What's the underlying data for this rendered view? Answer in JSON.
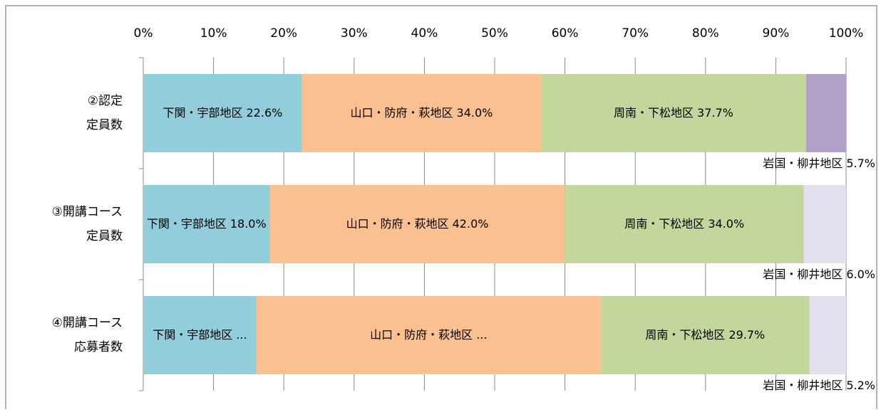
{
  "chart_data": {
    "type": "stacked-bar-100",
    "categories": [
      [
        "②認定",
        "定員数"
      ],
      [
        "③開講コース",
        "定員数"
      ],
      [
        "④開講コース",
        "応募者数"
      ]
    ],
    "series": [
      {
        "name": "下関・宇部地区",
        "color": "#92cddc",
        "values": [
          22.6,
          18.0,
          16.1
        ],
        "value_labels": [
          "22.6%",
          "18.0%",
          "..."
        ]
      },
      {
        "name": "山口・防府・萩地区",
        "color": "#fac090",
        "values": [
          34.0,
          42.0,
          49.0
        ],
        "value_labels": [
          "34.0%",
          "42.0%",
          "..."
        ]
      },
      {
        "name": "周南・下松地区",
        "color": "#c3d69b",
        "values": [
          37.7,
          34.0,
          29.7
        ],
        "value_labels": [
          "37.7%",
          "34.0%",
          "29.7%"
        ]
      },
      {
        "name": "岩国・柳井地区",
        "colors": [
          "#b2a1c7",
          "#e4dfec",
          "#e4dfec"
        ],
        "values": [
          5.7,
          6.0,
          5.2
        ],
        "value_labels": [
          "5.7%",
          "6.0%",
          "5.2%"
        ],
        "label_position": "outside-below"
      }
    ],
    "xlim": [
      0,
      100
    ],
    "xticks": [
      {
        "value": 0,
        "label": "0%"
      },
      {
        "value": 10,
        "label": "10%"
      },
      {
        "value": 20,
        "label": "20%"
      },
      {
        "value": 30,
        "label": "30%"
      },
      {
        "value": 40,
        "label": "40%"
      },
      {
        "value": 50,
        "label": "50%"
      },
      {
        "value": 60,
        "label": "60%"
      },
      {
        "value": 70,
        "label": "70%"
      },
      {
        "value": 80,
        "label": "80%"
      },
      {
        "value": 90,
        "label": "90%"
      },
      {
        "value": 100,
        "label": "100%"
      }
    ],
    "grid": true
  }
}
